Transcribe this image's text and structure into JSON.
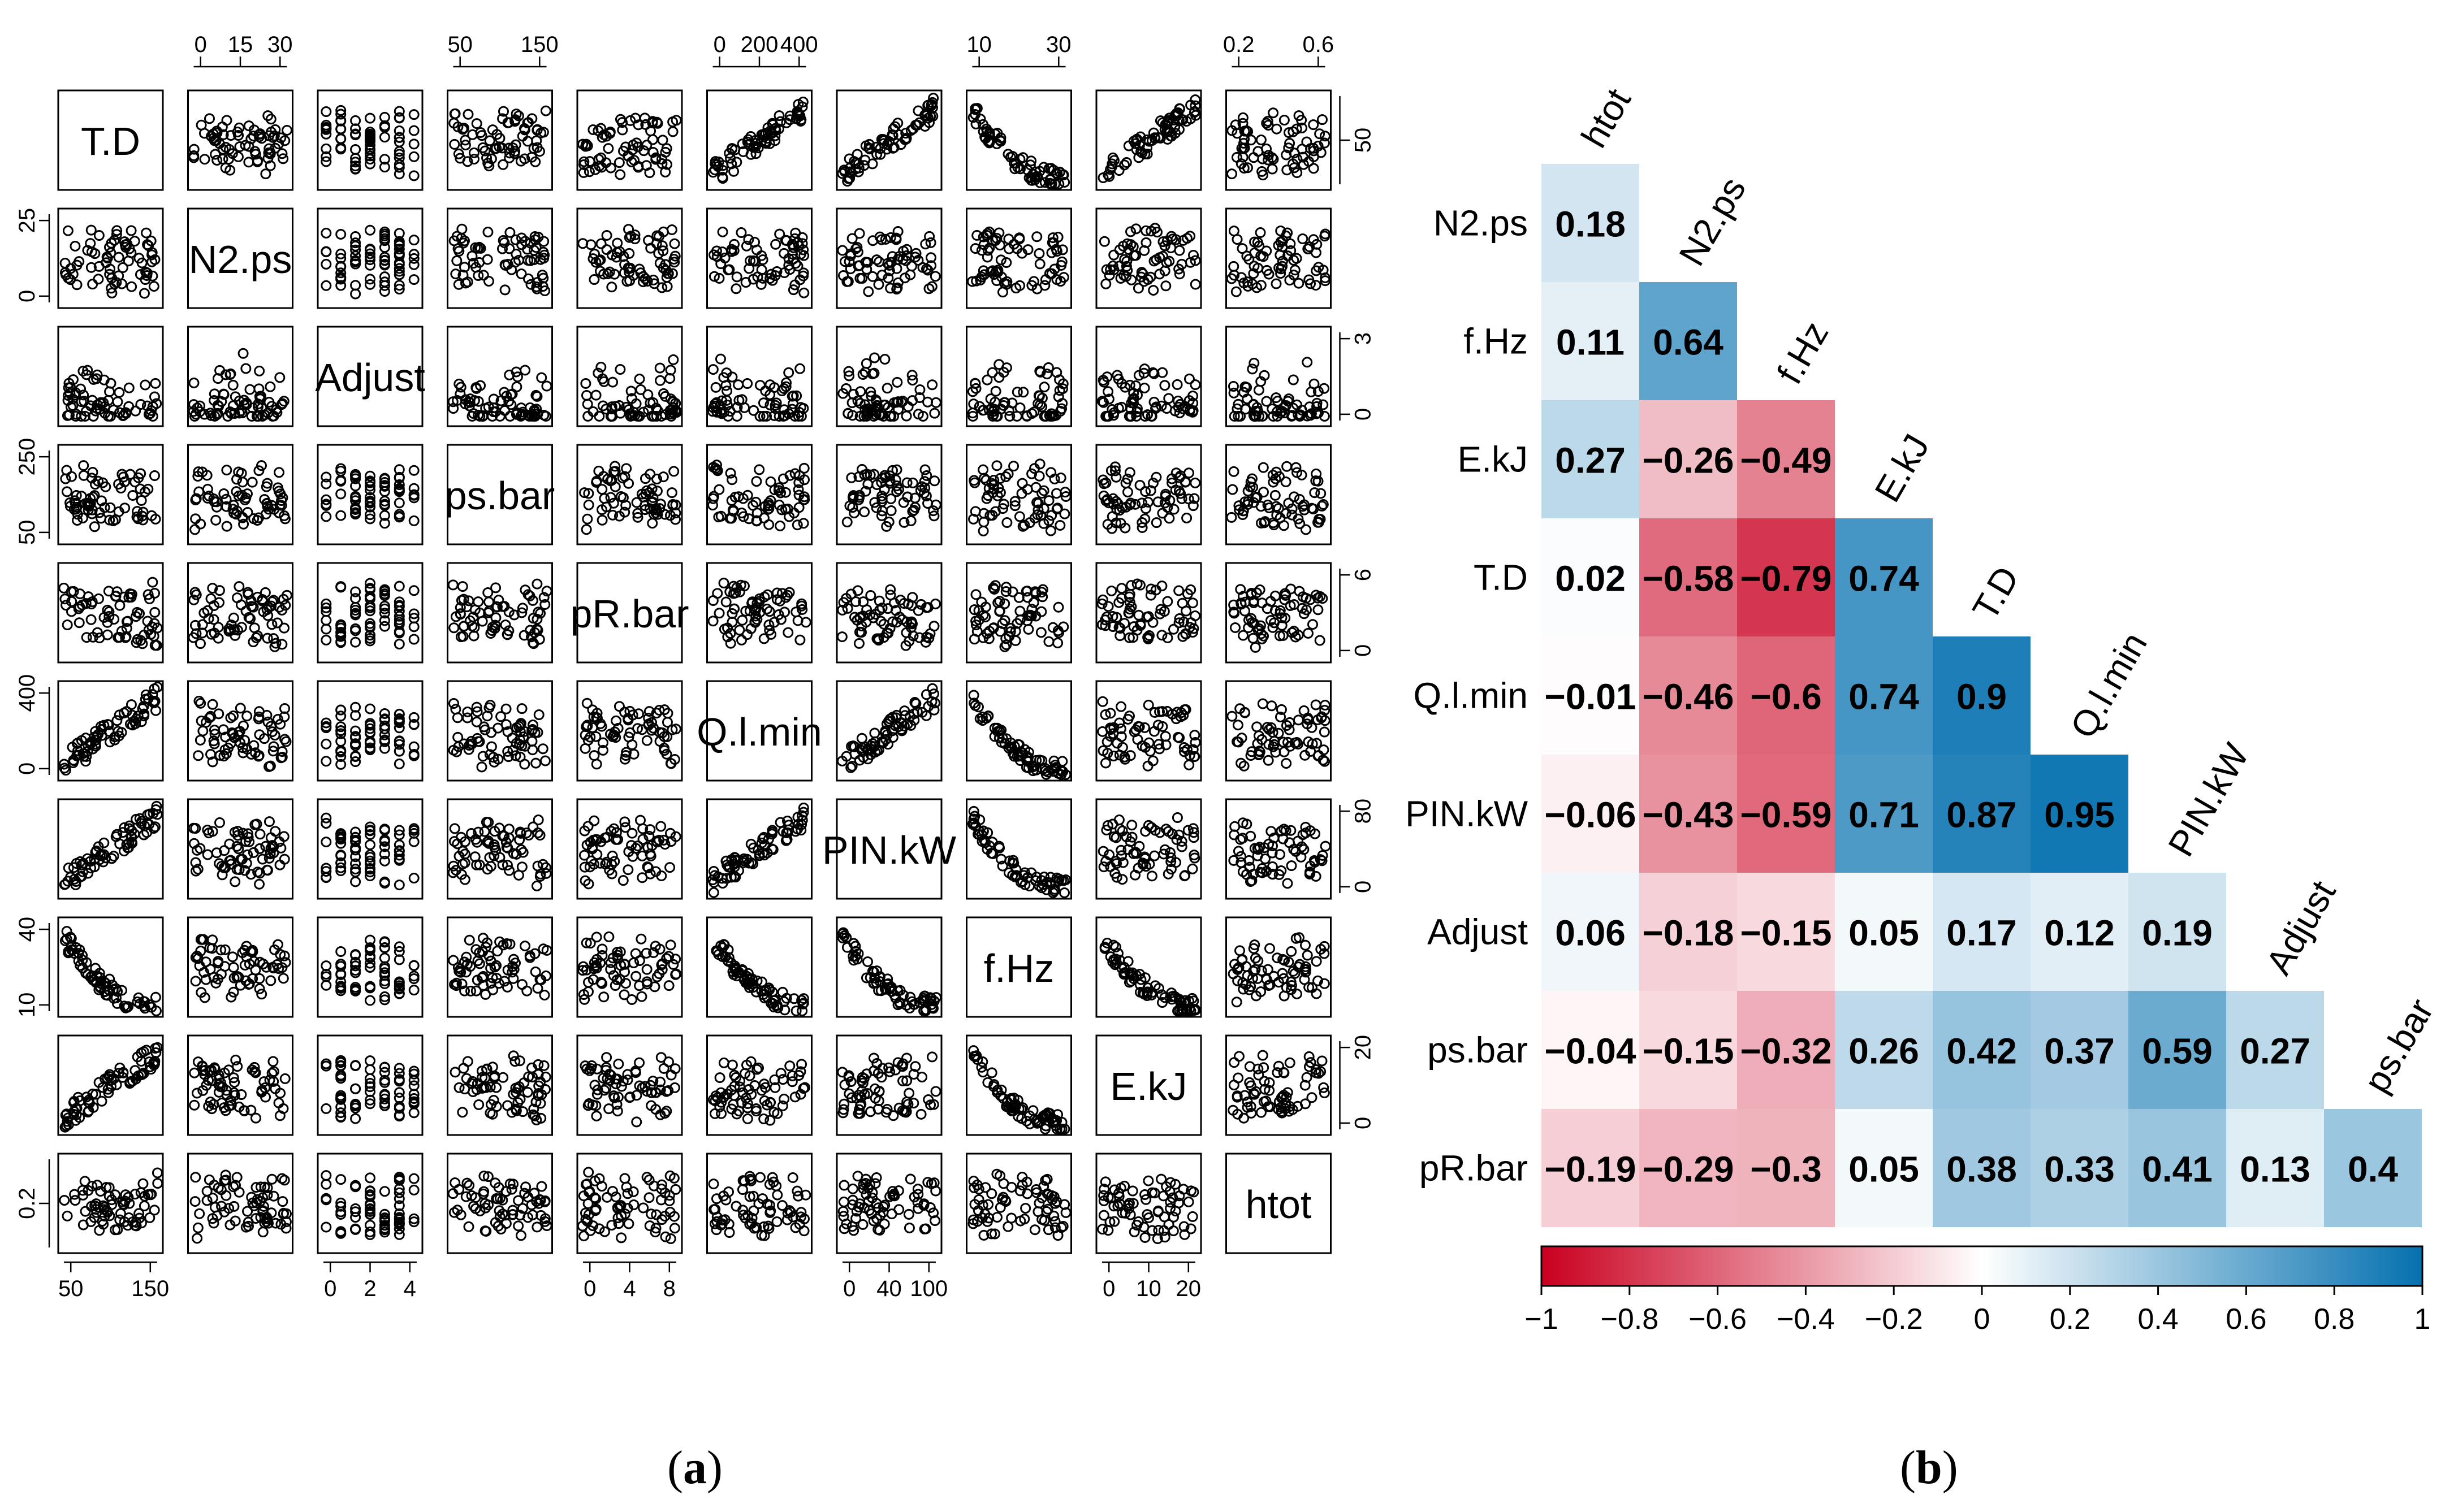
{
  "captions": {
    "a_open": "(",
    "a_letter": "a",
    "a_close": ")",
    "b_open": "(",
    "b_letter": "b",
    "b_close": ")"
  },
  "colors": {
    "neg": "#ca0020",
    "zero": "#ffffff",
    "pos": "#0571b0",
    "ink": "#000000"
  },
  "chart_data": [
    {
      "type": "scatter",
      "kind": "scatterplot-matrix",
      "title": "",
      "variables": [
        "T.D",
        "N2.ps",
        "Adjust",
        "ps.bar",
        "pR.bar",
        "Q.l.min",
        "PIN.kW",
        "f.Hz",
        "E.kJ",
        "htot"
      ],
      "axis_ticks": {
        "top": [
          {
            "var": "N2.ps",
            "ticks": [
              "0",
              "15",
              "30"
            ]
          },
          {
            "var": "ps.bar",
            "ticks": [
              "50",
              "150"
            ]
          },
          {
            "var": "Q.l.min",
            "ticks": [
              "0",
              "200",
              "400"
            ]
          },
          {
            "var": "f.Hz",
            "ticks": [
              "10",
              "30"
            ]
          },
          {
            "var": "htot",
            "ticks": [
              "0.2",
              "0.6"
            ]
          }
        ],
        "bottom": [
          {
            "var": "T.D",
            "ticks": [
              "50",
              "150"
            ]
          },
          {
            "var": "Adjust",
            "ticks": [
              "0",
              "2",
              "4"
            ]
          },
          {
            "var": "pR.bar",
            "ticks": [
              "0",
              "4",
              "8"
            ]
          },
          {
            "var": "PIN.kW",
            "ticks": [
              "0",
              "40",
              "100"
            ]
          },
          {
            "var": "E.kJ",
            "ticks": [
              "0",
              "10",
              "20"
            ]
          }
        ],
        "left": [
          {
            "var": "N2.ps",
            "ticks": [
              "0",
              "25"
            ]
          },
          {
            "var": "ps.bar",
            "ticks": [
              "50",
              "250"
            ]
          },
          {
            "var": "Q.l.min",
            "ticks": [
              "0",
              "400"
            ]
          },
          {
            "var": "f.Hz",
            "ticks": [
              "10",
              "40"
            ]
          },
          {
            "var": "htot",
            "ticks": [
              "0.2"
            ]
          }
        ],
        "right": [
          {
            "var": "T.D",
            "ticks": [
              "50"
            ]
          },
          {
            "var": "Adjust",
            "ticks": [
              "0",
              "3"
            ]
          },
          {
            "var": "pR.bar",
            "ticks": [
              "0",
              "6"
            ]
          },
          {
            "var": "PIN.kW",
            "ticks": [
              "0",
              "80"
            ]
          },
          {
            "var": "E.kJ",
            "ticks": [
              "0",
              "20"
            ]
          }
        ]
      }
    },
    {
      "type": "heatmap",
      "kind": "correlation-lower-triangle",
      "title": "",
      "columns": [
        "htot",
        "N2.ps",
        "f.Hz",
        "E.kJ",
        "T.D",
        "Q.l.min",
        "PIN.kW",
        "Adjust",
        "ps.bar"
      ],
      "rows": [
        "N2.ps",
        "f.Hz",
        "E.kJ",
        "T.D",
        "Q.l.min",
        "PIN.kW",
        "Adjust",
        "ps.bar",
        "pR.bar"
      ],
      "values": [
        [
          0.18
        ],
        [
          0.11,
          0.64
        ],
        [
          0.27,
          -0.26,
          -0.49
        ],
        [
          0.02,
          -0.58,
          -0.79,
          0.74
        ],
        [
          -0.01,
          -0.46,
          -0.6,
          0.74,
          0.9
        ],
        [
          -0.06,
          -0.43,
          -0.59,
          0.71,
          0.87,
          0.95
        ],
        [
          0.06,
          -0.18,
          -0.15,
          0.05,
          0.17,
          0.12,
          0.19
        ],
        [
          -0.04,
          -0.15,
          -0.32,
          0.26,
          0.42,
          0.37,
          0.59,
          0.27
        ],
        [
          -0.19,
          -0.29,
          -0.3,
          0.05,
          0.38,
          0.33,
          0.41,
          0.13,
          0.4
        ]
      ],
      "labels": [
        [
          "0.18"
        ],
        [
          "0.11",
          "0.64"
        ],
        [
          "0.27",
          "−0.26",
          "−0.49"
        ],
        [
          "0.02",
          "−0.58",
          "−0.79",
          "0.74"
        ],
        [
          "−0.01",
          "−0.46",
          "−0.6",
          "0.74",
          "0.9"
        ],
        [
          "−0.06",
          "−0.43",
          "−0.59",
          "0.71",
          "0.87",
          "0.95"
        ],
        [
          "0.06",
          "−0.18",
          "−0.15",
          "0.05",
          "0.17",
          "0.12",
          "0.19"
        ],
        [
          "−0.04",
          "−0.15",
          "−0.32",
          "0.26",
          "0.42",
          "0.37",
          "0.59",
          "0.27"
        ],
        [
          "−0.19",
          "−0.29",
          "−0.3",
          "0.05",
          "0.38",
          "0.33",
          "0.41",
          "0.13",
          "0.4"
        ]
      ],
      "colorbar": {
        "range": [
          -1,
          1
        ],
        "ticks": [
          "−1",
          "−0.8",
          "−0.6",
          "−0.4",
          "−0.2",
          "0",
          "0.2",
          "0.4",
          "0.6",
          "0.8",
          "1"
        ],
        "placement": "bottom"
      }
    }
  ]
}
